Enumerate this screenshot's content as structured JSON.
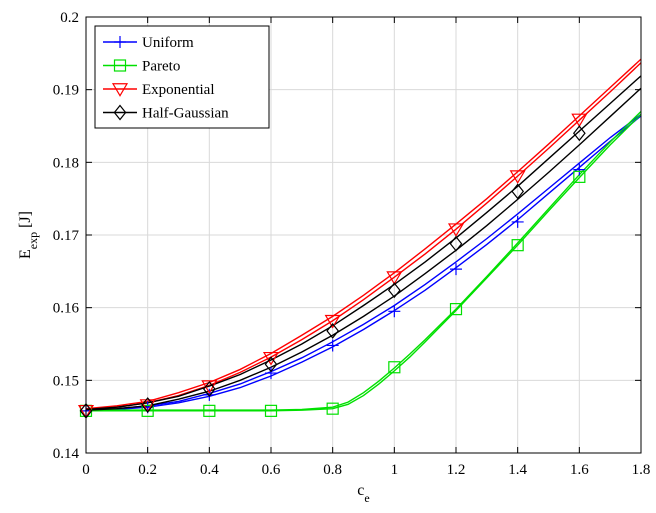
{
  "chart_data": {
    "type": "line",
    "xlabel": "c",
    "xlabel_sub": "e",
    "ylabel": "E",
    "ylabel_sub": "exp",
    "ylabel_unit": " [J]",
    "xlim": [
      0,
      1.8
    ],
    "ylim": [
      0.14,
      0.2
    ],
    "xticks": [
      0,
      0.2,
      0.4,
      0.6,
      0.8,
      1,
      1.2,
      1.4,
      1.6,
      1.8
    ],
    "xtick_labels": [
      "0",
      "0.2",
      "0.4",
      "0.6",
      "0.8",
      "1",
      "1.2",
      "1.4",
      "1.6",
      "1.8"
    ],
    "yticks": [
      0.14,
      0.15,
      0.16,
      0.17,
      0.18,
      0.19,
      0.2
    ],
    "ytick_labels": [
      "0.14",
      "0.15",
      "0.16",
      "0.17",
      "0.18",
      "0.19",
      "0.2"
    ],
    "grid": true,
    "legend_position": "top-left",
    "series": [
      {
        "name": "Uniform",
        "color": "#0000ff",
        "marker": "plus",
        "markers_x": [
          0,
          0.2,
          0.4,
          0.6,
          0.8,
          1.0,
          1.2,
          1.4,
          1.6
        ],
        "markers_y": [
          0.1458,
          0.1463,
          0.148,
          0.151,
          0.1548,
          0.1595,
          0.1653,
          0.1718,
          0.179
        ],
        "curve_upper": {
          "x": [
            0,
            0.1,
            0.2,
            0.3,
            0.4,
            0.5,
            0.6,
            0.7,
            0.8,
            0.9,
            1.0,
            1.1,
            1.2,
            1.3,
            1.4,
            1.5,
            1.6,
            1.7,
            1.8
          ],
          "y": [
            0.146,
            0.1461,
            0.1465,
            0.1471,
            0.1482,
            0.1495,
            0.1512,
            0.1531,
            0.1553,
            0.1577,
            0.1603,
            0.1632,
            0.1663,
            0.1695,
            0.1729,
            0.1764,
            0.1799,
            0.1834,
            0.1866
          ]
        },
        "curve_lower": {
          "x": [
            0,
            0.1,
            0.2,
            0.3,
            0.4,
            0.5,
            0.6,
            0.7,
            0.8,
            0.9,
            1.0,
            1.1,
            1.2,
            1.3,
            1.4,
            1.5,
            1.6,
            1.7,
            1.8
          ],
          "y": [
            0.1459,
            0.146,
            0.1463,
            0.1469,
            0.1478,
            0.149,
            0.1506,
            0.1525,
            0.1546,
            0.157,
            0.1596,
            0.1624,
            0.1655,
            0.1687,
            0.1721,
            0.1757,
            0.1793,
            0.1829,
            0.1864
          ]
        }
      },
      {
        "name": "Pareto",
        "color": "#00e000",
        "marker": "square",
        "markers_x": [
          0,
          0.2,
          0.4,
          0.6,
          0.8,
          1.0,
          1.2,
          1.4,
          1.6
        ],
        "markers_y": [
          0.1458,
          0.1458,
          0.1458,
          0.1458,
          0.1461,
          0.1518,
          0.1598,
          0.1686,
          0.178
        ],
        "curve_upper": {
          "x": [
            0,
            0.2,
            0.4,
            0.6,
            0.7,
            0.8,
            0.85,
            0.9,
            0.95,
            1.0,
            1.05,
            1.1,
            1.2,
            1.3,
            1.4,
            1.5,
            1.6,
            1.7,
            1.8
          ],
          "y": [
            0.1459,
            0.1459,
            0.1459,
            0.1459,
            0.146,
            0.1463,
            0.147,
            0.1483,
            0.1499,
            0.1517,
            0.1536,
            0.1556,
            0.1598,
            0.1643,
            0.1689,
            0.1736,
            0.1783,
            0.1828,
            0.187
          ]
        },
        "curve_lower": {
          "x": [
            0,
            0.2,
            0.4,
            0.6,
            0.7,
            0.8,
            0.85,
            0.9,
            0.95,
            1.0,
            1.05,
            1.1,
            1.2,
            1.3,
            1.4,
            1.5,
            1.6,
            1.7,
            1.8
          ],
          "y": [
            0.1458,
            0.1458,
            0.1458,
            0.1458,
            0.1459,
            0.1461,
            0.1467,
            0.1479,
            0.1495,
            0.1513,
            0.1532,
            0.1553,
            0.1596,
            0.1641,
            0.1686,
            0.1733,
            0.1779,
            0.1824,
            0.1866
          ]
        }
      },
      {
        "name": "Exponential",
        "color": "#ff0000",
        "marker": "triangle-down",
        "markers_x": [
          0,
          0.2,
          0.4,
          0.6,
          0.8,
          1.0,
          1.2,
          1.4,
          1.6
        ],
        "markers_y": [
          0.1458,
          0.1466,
          0.1492,
          0.1531,
          0.1582,
          0.1642,
          0.1708,
          0.1781,
          0.1859
        ],
        "curve_upper": {
          "x": [
            0,
            0.1,
            0.2,
            0.3,
            0.4,
            0.5,
            0.6,
            0.7,
            0.8,
            0.9,
            1.0,
            1.1,
            1.2,
            1.3,
            1.4,
            1.5,
            1.6,
            1.7,
            1.8
          ],
          "y": [
            0.1461,
            0.1465,
            0.1471,
            0.1483,
            0.1497,
            0.1515,
            0.1537,
            0.1562,
            0.1588,
            0.1617,
            0.1648,
            0.1681,
            0.1715,
            0.175,
            0.1787,
            0.1825,
            0.1864,
            0.1903,
            0.1942
          ]
        },
        "curve_lower": {
          "x": [
            0,
            0.1,
            0.2,
            0.3,
            0.4,
            0.5,
            0.6,
            0.7,
            0.8,
            0.9,
            1.0,
            1.1,
            1.2,
            1.3,
            1.4,
            1.5,
            1.6,
            1.7,
            1.8
          ],
          "y": [
            0.146,
            0.1463,
            0.1469,
            0.1479,
            0.1493,
            0.1511,
            0.1532,
            0.1556,
            0.1582,
            0.1611,
            0.1642,
            0.1674,
            0.1708,
            0.1744,
            0.1781,
            0.1819,
            0.1858,
            0.1897,
            0.1937
          ]
        }
      },
      {
        "name": "Half-Gaussian",
        "color": "#000000",
        "marker": "diamond",
        "markers_x": [
          0,
          0.2,
          0.4,
          0.6,
          0.8,
          1.0,
          1.2,
          1.4,
          1.6
        ],
        "markers_y": [
          0.1458,
          0.1466,
          0.1488,
          0.1522,
          0.1568,
          0.1624,
          0.1688,
          0.176,
          0.184
        ],
        "curve_upper": {
          "x": [
            0,
            0.1,
            0.2,
            0.3,
            0.4,
            0.5,
            0.6,
            0.7,
            0.8,
            0.9,
            1.0,
            1.1,
            1.2,
            1.3,
            1.4,
            1.5,
            1.6,
            1.7,
            1.8
          ],
          "y": [
            0.146,
            0.1463,
            0.1469,
            0.1478,
            0.1492,
            0.1508,
            0.1528,
            0.155,
            0.1575,
            0.1603,
            0.1632,
            0.1663,
            0.1696,
            0.1731,
            0.1767,
            0.1805,
            0.1843,
            0.1881,
            0.1919
          ]
        },
        "curve_lower": {
          "x": [
            0,
            0.1,
            0.2,
            0.3,
            0.4,
            0.5,
            0.6,
            0.7,
            0.8,
            0.9,
            1.0,
            1.1,
            1.2,
            1.3,
            1.4,
            1.5,
            1.6,
            1.7,
            1.8
          ],
          "y": [
            0.1459,
            0.1461,
            0.1465,
            0.1474,
            0.1485,
            0.15,
            0.1518,
            0.1539,
            0.1562,
            0.1588,
            0.1616,
            0.1647,
            0.1679,
            0.1713,
            0.1749,
            0.1786,
            0.1824,
            0.1863,
            0.1902
          ]
        }
      }
    ]
  }
}
